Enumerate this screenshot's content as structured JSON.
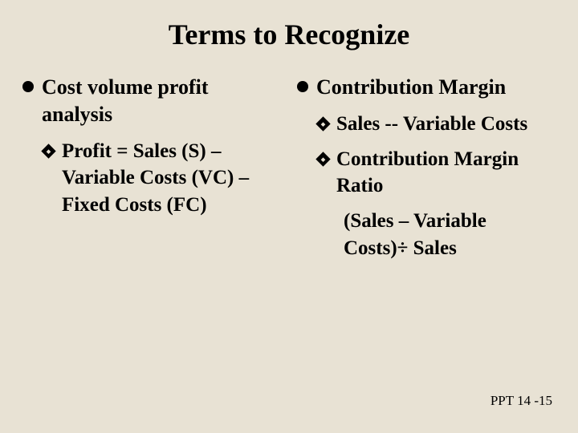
{
  "background_color": "#e8e2d4",
  "text_color": "#000000",
  "font_family": "Times New Roman",
  "title": {
    "text": "Terms to Recognize",
    "fontsize": 36,
    "weight": "bold"
  },
  "bullet_style": {
    "level1": "disc",
    "level2": "diamond-outline",
    "color": "#000000"
  },
  "left": {
    "main": {
      "text": "Cost volume profit analysis"
    },
    "sub1": {
      "text": "Profit = Sales (S) – Variable Costs (VC) – Fixed Costs (FC)"
    }
  },
  "right": {
    "main": {
      "text": "Contribution Margin"
    },
    "sub1": {
      "text": "Sales -- Variable Costs"
    },
    "sub2": {
      "text": "Contribution Margin Ratio"
    },
    "sub2detail": {
      "text": "(Sales – Variable Costs)÷ Sales"
    }
  },
  "footer": {
    "text": "PPT 14 -15",
    "fontsize": 17
  }
}
